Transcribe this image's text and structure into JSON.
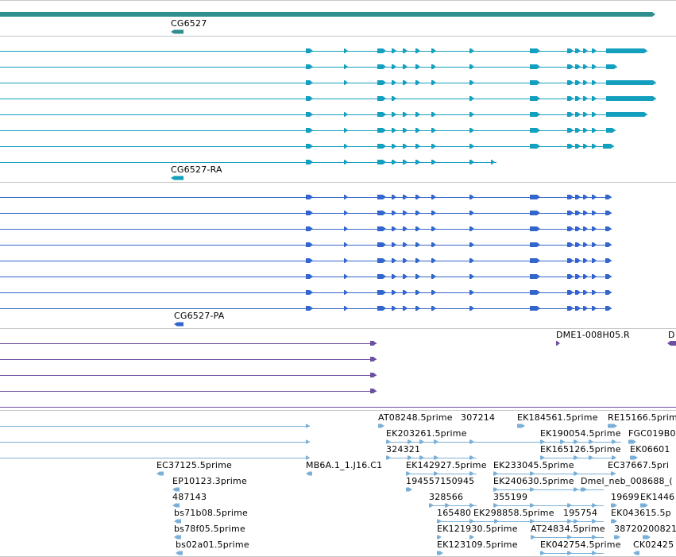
{
  "colors": {
    "gene": "#2f8f8f",
    "transcript": "#159fbf",
    "protein": "#3366cc",
    "clone": "#6e4fa0",
    "est": "#7ab0d8",
    "separator": "#c8c8c8"
  },
  "gene_track": {
    "label": "CG6527"
  },
  "transcript_track": {
    "label": "CG6527-RA"
  },
  "protein_track": {
    "label": "CG6527-PA"
  },
  "clone_track": {
    "labels": [
      "DME1-008H05.R",
      "D"
    ]
  },
  "est_track": {
    "labels": [
      "AT08248.5prime",
      "307214",
      "EK184561.5prime",
      "RE15166.5prime",
      "EK203261.5prime",
      "EK190054.5prime",
      "FGC019B0",
      "324321",
      "EK165126.5prime",
      "EK06601",
      "EC37125.5prime",
      "MB6A.1_1.J16.C1",
      "EK142927.5prime",
      "EK233045.5prime",
      "EC37667.5pri",
      "EP10123.3prime",
      "194557150945",
      "EK240630.5prime",
      "Dmel_neb_008688_(",
      "487143",
      "328566",
      "355199",
      "19699",
      "EK1446",
      "bs71b08.5prime",
      "165480",
      "EK298858.5prime",
      "195754",
      "EK043615.5p",
      "bs78f05.5prime",
      "EK121930.5prime",
      "AT24834.5prime",
      "38720",
      "200821",
      "bs02a01.5prime",
      "EK123109.5prime",
      "EK042754.5prime",
      "CK02425"
    ]
  }
}
